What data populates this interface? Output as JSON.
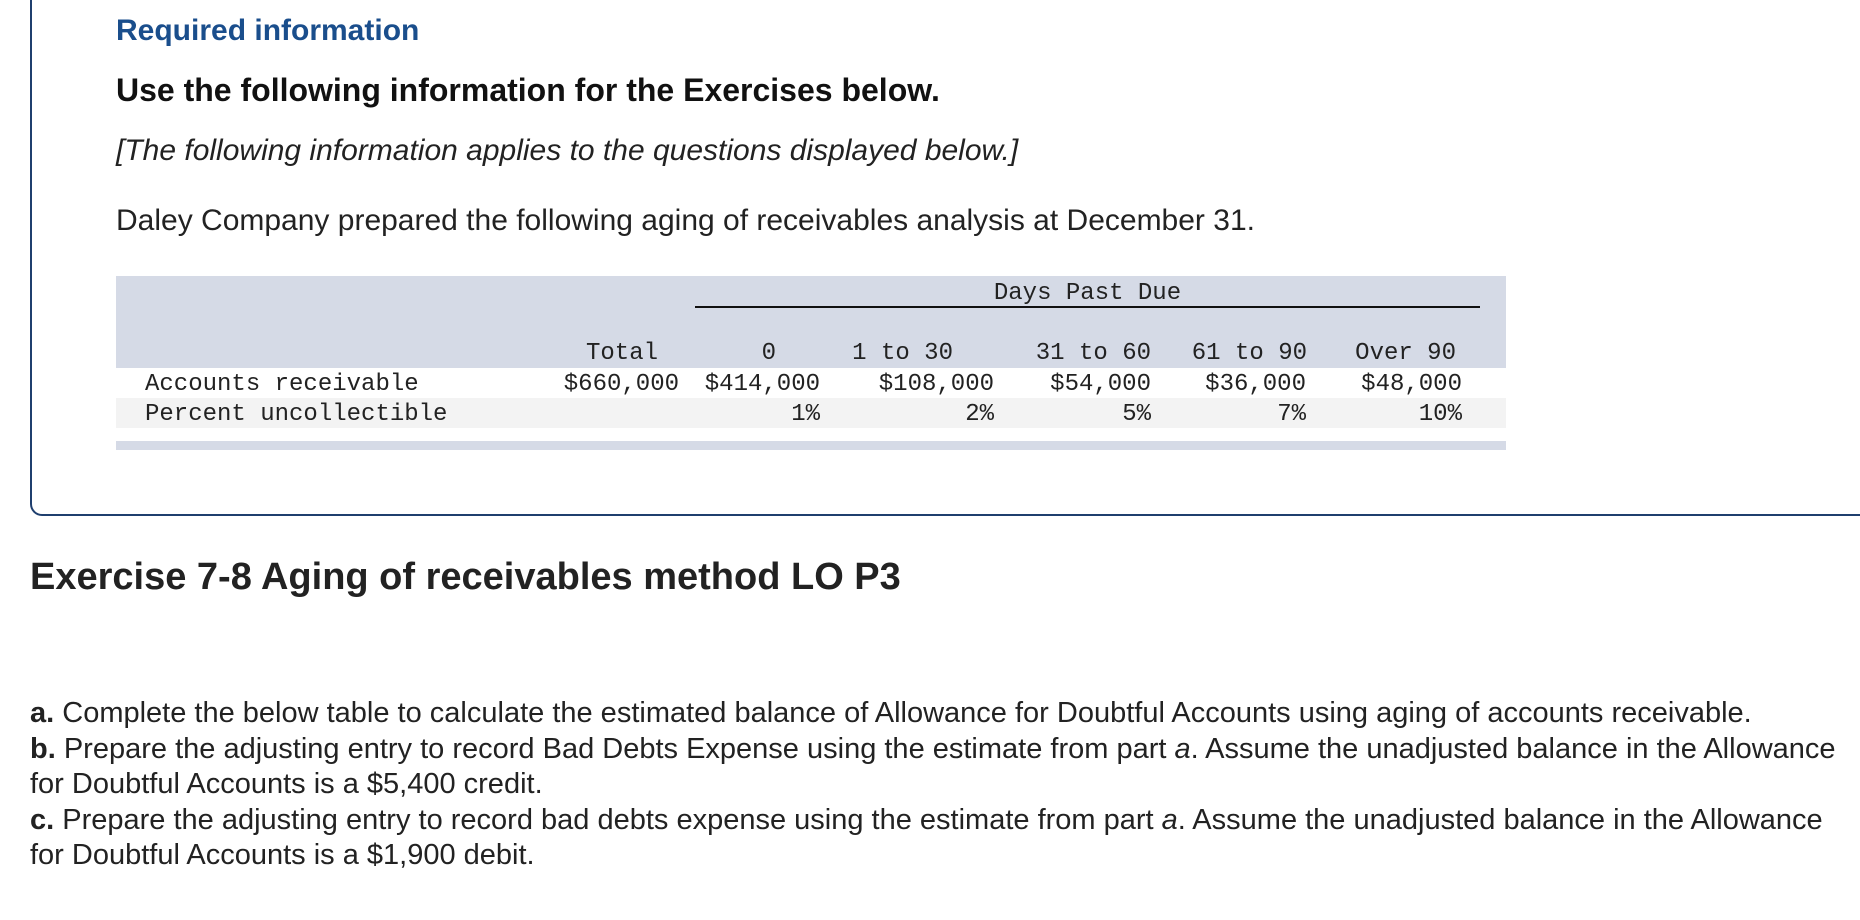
{
  "required_info": {
    "title": "Required information",
    "heading": "Use the following information for the Exercises below.",
    "note": "[The following information applies to the questions displayed below.]",
    "intro": "Daley Company prepared the following aging of receivables analysis at December 31."
  },
  "aging_table": {
    "group_header": "Days Past Due",
    "columns": [
      "Total",
      "0",
      "1 to 30",
      "31 to 60",
      "61 to 90",
      "Over 90"
    ],
    "rows": [
      {
        "label": "Accounts receivable",
        "values": [
          "$660,000",
          "$414,000",
          "$108,000",
          "$54,000",
          "$36,000",
          "$48,000"
        ]
      },
      {
        "label": "Percent uncollectible",
        "values": [
          "",
          "1%",
          "2%",
          "5%",
          "7%",
          "10%"
        ]
      }
    ]
  },
  "exercise": {
    "title": "Exercise 7-8 Aging of receivables method LO P3",
    "parts": [
      {
        "letter": "a.",
        "text": " Complete the below table to calculate the estimated balance of Allowance for Doubtful Accounts using aging of accounts receivable."
      },
      {
        "letter": "b.",
        "text_before": " Prepare the adjusting entry to record Bad Debts Expense using the estimate from part ",
        "ref": "a",
        "text_after": ". Assume the unadjusted balance in the Allowance for Doubtful Accounts is a $5,400 credit."
      },
      {
        "letter": "c.",
        "text_before": " Prepare the adjusting entry to record bad debts expense using the estimate from part ",
        "ref": "a",
        "text_after": ". Assume the unadjusted balance in the Allowance for Doubtful Accounts is a $1,900 debit."
      }
    ]
  }
}
